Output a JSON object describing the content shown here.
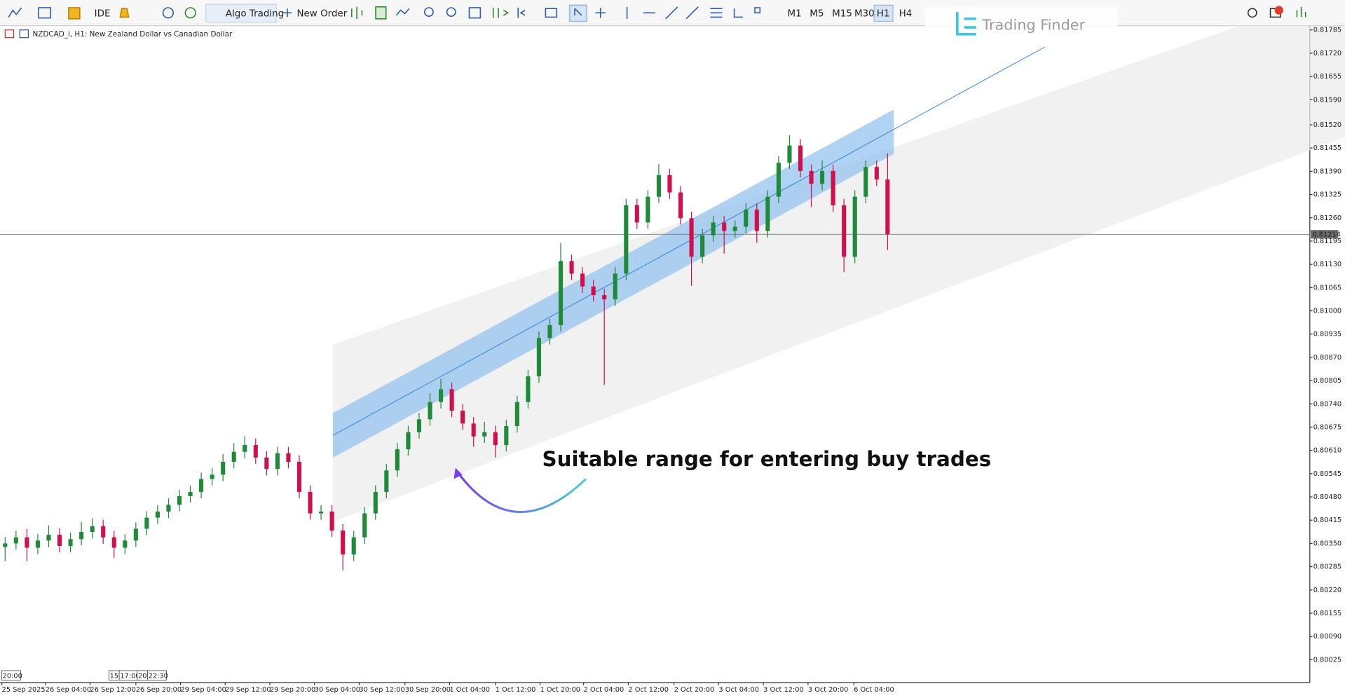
{
  "toolbar": {
    "items": [
      "IDE",
      "Algo Trading",
      "New Order"
    ],
    "timeframes": [
      "M1",
      "M5",
      "M15",
      "M30",
      "H1",
      "H4"
    ],
    "active_timeframe": "H1"
  },
  "watermark": "Trading Finder",
  "chart_data": {
    "type": "candlestick",
    "title": "NZDCAD_i, H1: New Zealand Dollar vs Canadian Dollar",
    "annotation": "Suitable range for entering buy trades",
    "up_color": "#1f8a3a",
    "down_color": "#d0104c",
    "current_price": 0.81214,
    "time_markers": [
      "20:00",
      "15:",
      "17:00",
      "20:",
      "22:30"
    ],
    "ylim": [
      0.79961,
      0.81797
    ],
    "xlim": [
      -0.47,
      119.76
    ],
    "yticks": [
      0.81785,
      {
        "value": 0.8172,
        "label": "0.81720"
      },
      0.81655,
      {
        "value": 0.8159,
        "label": "0.81590"
      },
      {
        "value": 0.8152,
        "label": "0.81520"
      },
      0.81455,
      {
        "value": 0.8139,
        "label": "0.81390"
      },
      0.81325,
      {
        "value": 0.8126,
        "label": "0.81260"
      },
      0.81195,
      {
        "value": 0.8113,
        "label": "0.81130"
      },
      0.81065,
      {
        "value": 0.81,
        "label": "0.81000"
      },
      0.80935,
      {
        "value": 0.8087,
        "label": "0.80870"
      },
      0.80805,
      {
        "value": 0.8074,
        "label": "0.80740"
      },
      0.80675,
      {
        "value": 0.8061,
        "label": "0.80610"
      },
      0.80545,
      {
        "value": 0.8048,
        "label": "0.80480"
      },
      0.80415,
      {
        "value": 0.8035,
        "label": "0.80350"
      },
      0.80285,
      {
        "value": 0.8022,
        "label": "0.80220"
      },
      0.80155,
      {
        "value": 0.8009,
        "label": "0.80090"
      },
      0.80025
    ],
    "xticks": [
      {
        "value": -0.3,
        "label": "25 Sep 2025"
      },
      {
        "value": 3.7,
        "label": "26 Sep 04:00"
      },
      {
        "value": 7.8,
        "label": "26 Sep 12:00"
      },
      {
        "value": 12,
        "label": "26 Sep 20:00"
      },
      {
        "value": 16.1,
        "label": "29 Sep 04:00"
      },
      {
        "value": 20.2,
        "label": "29 Sep 12:00"
      },
      {
        "value": 24.3,
        "label": "29 Sep 20:00"
      },
      {
        "value": 28.4,
        "label": "30 Sep 04:00"
      },
      {
        "value": 32.5,
        "label": "30 Sep 12:00"
      },
      {
        "value": 36.7,
        "label": "30 Sep 20:00"
      },
      {
        "value": 40.8,
        "label": "1 Oct 04:00"
      },
      {
        "value": 45,
        "label": "1 Oct 12:00"
      },
      {
        "value": 49.1,
        "label": "1 Oct 20:00"
      },
      {
        "value": 53.1,
        "label": "2 Oct 04:00"
      },
      {
        "value": 57.2,
        "label": "2 Oct 12:00"
      },
      {
        "value": 61.4,
        "label": "2 Oct 20:00"
      },
      {
        "value": 65.5,
        "label": "3 Oct 04:00"
      },
      {
        "value": 69.6,
        "label": "3 Oct 12:00"
      },
      {
        "value": 73.7,
        "label": "3 Oct 20:00"
      },
      {
        "value": 77.9,
        "label": "6 Oct 04:00"
      }
    ],
    "ohlc": [
      [
        0.8034,
        0.80368,
        0.803,
        0.8035
      ],
      [
        0.8035,
        0.80385,
        0.80332,
        0.80367
      ],
      [
        0.80367,
        0.8039,
        0.803,
        0.80338
      ],
      [
        0.80338,
        0.80376,
        0.8032,
        0.80358
      ],
      [
        0.80358,
        0.804,
        0.8034,
        0.80374
      ],
      [
        0.80374,
        0.80392,
        0.80325,
        0.80343
      ],
      [
        0.80343,
        0.8038,
        0.80325,
        0.80362
      ],
      [
        0.80362,
        0.8041,
        0.80345,
        0.80382
      ],
      [
        0.80382,
        0.8042,
        0.80364,
        0.80398
      ],
      [
        0.80398,
        0.80416,
        0.80349,
        0.80367
      ],
      [
        0.80367,
        0.80385,
        0.8031,
        0.80338
      ],
      [
        0.80338,
        0.80376,
        0.8032,
        0.80358
      ],
      [
        0.80358,
        0.80409,
        0.8034,
        0.80391
      ],
      [
        0.80391,
        0.8044,
        0.80373,
        0.80422
      ],
      [
        0.80422,
        0.80457,
        0.80404,
        0.80439
      ],
      [
        0.80439,
        0.80476,
        0.80421,
        0.80458
      ],
      [
        0.80458,
        0.805,
        0.8044,
        0.80482
      ],
      [
        0.80482,
        0.80512,
        0.80464,
        0.80494
      ],
      [
        0.80494,
        0.80548,
        0.80476,
        0.8053
      ],
      [
        0.8053,
        0.8056,
        0.80512,
        0.80542
      ],
      [
        0.80542,
        0.806,
        0.80524,
        0.80578
      ],
      [
        0.80578,
        0.8063,
        0.8056,
        0.80606
      ],
      [
        0.80606,
        0.8065,
        0.80588,
        0.80625
      ],
      [
        0.80625,
        0.80643,
        0.80572,
        0.8059
      ],
      [
        0.8059,
        0.80608,
        0.8054,
        0.80558
      ],
      [
        0.80558,
        0.8062,
        0.8054,
        0.80602
      ],
      [
        0.80602,
        0.8062,
        0.8056,
        0.80578
      ],
      [
        0.80578,
        0.80596,
        0.80476,
        0.80494
      ],
      [
        0.80494,
        0.80512,
        0.80416,
        0.80434
      ],
      [
        0.80434,
        0.80457,
        0.80416,
        0.80439
      ],
      [
        0.80439,
        0.80457,
        0.80368,
        0.80386
      ],
      [
        0.80386,
        0.80404,
        0.80275,
        0.80319
      ],
      [
        0.80319,
        0.80385,
        0.80301,
        0.80367
      ],
      [
        0.80367,
        0.80452,
        0.80349,
        0.80434
      ],
      [
        0.80434,
        0.80512,
        0.80416,
        0.80494
      ],
      [
        0.80494,
        0.80572,
        0.80476,
        0.80554
      ],
      [
        0.80554,
        0.80631,
        0.80536,
        0.80613
      ],
      [
        0.80613,
        0.80679,
        0.80595,
        0.80661
      ],
      [
        0.80661,
        0.80715,
        0.80643,
        0.80697
      ],
      [
        0.80697,
        0.8077,
        0.80679,
        0.80745
      ],
      [
        0.80745,
        0.8081,
        0.80727,
        0.80781
      ],
      [
        0.80781,
        0.80799,
        0.80703,
        0.80721
      ],
      [
        0.80721,
        0.80739,
        0.80667,
        0.80685
      ],
      [
        0.80685,
        0.80703,
        0.8062,
        0.80649
      ],
      [
        0.80649,
        0.8069,
        0.80631,
        0.80661
      ],
      [
        0.80661,
        0.80679,
        0.8059,
        0.80625
      ],
      [
        0.80625,
        0.80696,
        0.80607,
        0.80678
      ],
      [
        0.80678,
        0.80763,
        0.8066,
        0.80745
      ],
      [
        0.80745,
        0.80835,
        0.80727,
        0.80817
      ],
      [
        0.80817,
        0.80942,
        0.80799,
        0.80924
      ],
      [
        0.80924,
        0.80978,
        0.80906,
        0.8096
      ],
      [
        0.8096,
        0.8119,
        0.80942,
        0.81139
      ],
      [
        0.81139,
        0.81157,
        0.81086,
        0.81104
      ],
      [
        0.81104,
        0.81122,
        0.8105,
        0.81068
      ],
      [
        0.81068,
        0.81086,
        0.81026,
        0.81044
      ],
      [
        0.81044,
        0.81062,
        0.80793,
        0.81032
      ],
      [
        0.81032,
        0.81122,
        0.81014,
        0.81104
      ],
      [
        0.81104,
        0.81313,
        0.81086,
        0.81295
      ],
      [
        0.81295,
        0.81313,
        0.81229,
        0.81247
      ],
      [
        0.81247,
        0.81337,
        0.81229,
        0.81319
      ],
      [
        0.81319,
        0.8141,
        0.81301,
        0.81379
      ],
      [
        0.81379,
        0.81397,
        0.81313,
        0.81331
      ],
      [
        0.81331,
        0.81349,
        0.81241,
        0.81259
      ],
      [
        0.81259,
        0.81277,
        0.8107,
        0.81151
      ],
      [
        0.81151,
        0.81229,
        0.81133,
        0.81211
      ],
      [
        0.81211,
        0.81265,
        0.81193,
        0.81247
      ],
      [
        0.81247,
        0.81265,
        0.8116,
        0.81223
      ],
      [
        0.81223,
        0.81253,
        0.81205,
        0.81235
      ],
      [
        0.81235,
        0.81301,
        0.81217,
        0.81283
      ],
      [
        0.81283,
        0.81301,
        0.8119,
        0.81223
      ],
      [
        0.81223,
        0.81337,
        0.81205,
        0.81319
      ],
      [
        0.81319,
        0.81432,
        0.81301,
        0.81414
      ],
      [
        0.81414,
        0.81491,
        0.81396,
        0.81462
      ],
      [
        0.81462,
        0.8148,
        0.81373,
        0.81391
      ],
      [
        0.81391,
        0.81409,
        0.8129,
        0.81355
      ],
      [
        0.81355,
        0.8142,
        0.81337,
        0.81391
      ],
      [
        0.81391,
        0.81409,
        0.81277,
        0.81295
      ],
      [
        0.81295,
        0.81313,
        0.81108,
        0.81151
      ],
      [
        0.81151,
        0.81337,
        0.81133,
        0.81319
      ],
      [
        0.81319,
        0.8142,
        0.81301,
        0.81402
      ],
      [
        0.81402,
        0.8142,
        0.81349,
        0.81367
      ],
      [
        0.81367,
        0.8144,
        0.8117,
        0.81214
      ]
    ]
  }
}
